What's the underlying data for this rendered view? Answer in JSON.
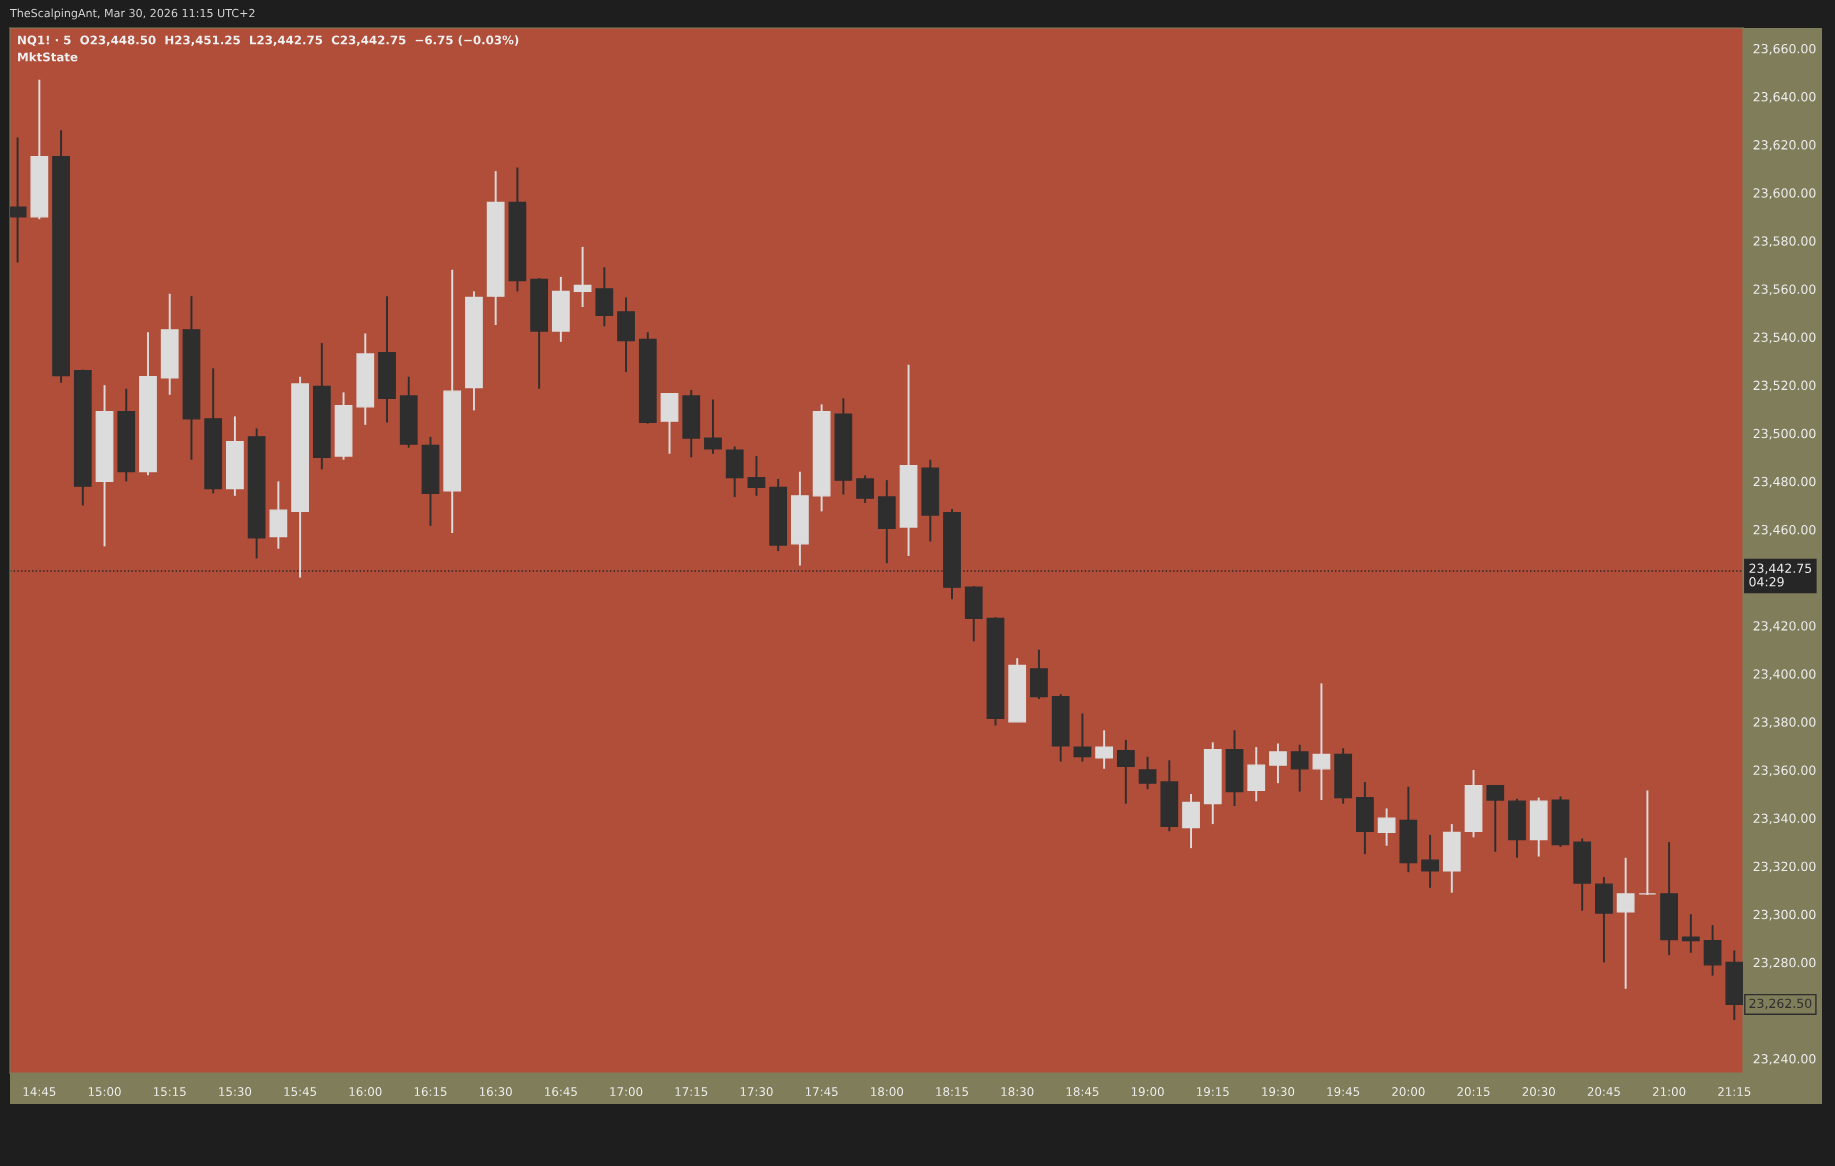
{
  "chart_data": {
    "type": "candlestick",
    "title": "NQ1! · 5  O23,448.50  H23,451.25  L23,442.75  C23,442.75  −6.75 (−0.03%)",
    "subtitle": "MktState",
    "annotations": [
      "TheScalpingAnt, Mar 30, 2026 11:15 UTC+2",
      "23,262.50"
    ],
    "categories": [
      null,
      "14:45",
      null,
      null,
      "15:00",
      null,
      null,
      "15:15",
      null,
      null,
      "15:30",
      null,
      null,
      "15:45",
      null,
      null,
      "16:00",
      null,
      null,
      "16:15",
      null,
      null,
      "16:30",
      null,
      null,
      "16:45",
      null,
      null,
      "17:00",
      null,
      null,
      "17:15",
      null,
      null,
      "17:30",
      null,
      null,
      "17:45",
      null,
      null,
      "18:00",
      null,
      null,
      "18:15",
      null,
      null,
      "18:30",
      null,
      null,
      "18:45",
      null,
      null,
      "19:00",
      null,
      null,
      "19:15",
      null,
      null,
      "19:30",
      null,
      null,
      "19:45",
      null,
      null,
      "20:00",
      null,
      null,
      "20:15",
      null,
      null,
      "20:30",
      null,
      null,
      "20:45",
      null,
      null,
      "21:00",
      null,
      null,
      "21:15"
    ],
    "ohlc": [
      [
        23594,
        23623,
        23571,
        23590
      ],
      [
        23590,
        23647,
        23589,
        23615
      ],
      [
        23615,
        23626,
        23521,
        23524
      ],
      [
        23526,
        23526.5,
        23470,
        23478
      ],
      [
        23480,
        23520,
        23453,
        23509
      ],
      [
        23509,
        23518.5,
        23480,
        23484
      ],
      [
        23484,
        23542,
        23482.5,
        23523.5
      ],
      [
        23523,
        23558,
        23516,
        23543
      ],
      [
        23543,
        23557,
        23489,
        23506
      ],
      [
        23506,
        23527,
        23475,
        23477
      ],
      [
        23477,
        23507,
        23474,
        23496.5
      ],
      [
        23498.5,
        23502,
        23448,
        23456.5
      ],
      [
        23457,
        23480,
        23452,
        23468
      ],
      [
        23467.5,
        23523.5,
        23440,
        23520.5
      ],
      [
        23519.5,
        23537.5,
        23485,
        23490
      ],
      [
        23490.5,
        23517,
        23489,
        23511.5
      ],
      [
        23511,
        23541.5,
        23503.5,
        23533
      ],
      [
        23533.5,
        23557,
        23504.5,
        23514.5
      ],
      [
        23515.5,
        23523.5,
        23494,
        23495.5
      ],
      [
        23495,
        23498.5,
        23461.5,
        23475
      ],
      [
        23476,
        23568,
        23458.5,
        23517.5
      ],
      [
        23519,
        23559,
        23509.5,
        23556.5
      ],
      [
        23557,
        23609,
        23545,
        23596
      ],
      [
        23596,
        23610.5,
        23559,
        23563.5
      ],
      [
        23564,
        23564.5,
        23518.5,
        23542.5
      ],
      [
        23542.5,
        23565,
        23538,
        23559
      ],
      [
        23559,
        23577.5,
        23552.5,
        23561.5
      ],
      [
        23560,
        23569,
        23544.5,
        23549
      ],
      [
        23550.5,
        23556.5,
        23525.5,
        23538.5
      ],
      [
        23539,
        23542,
        23504,
        23504.5
      ],
      [
        23505,
        23516.5,
        23491.5,
        23516.5
      ],
      [
        23515.5,
        23518,
        23490,
        23498
      ],
      [
        23498,
        23514,
        23491.5,
        23493.5
      ],
      [
        23493,
        23494.5,
        23473.5,
        23481.5
      ],
      [
        23481.5,
        23490.5,
        23474,
        23477.5
      ],
      [
        23477.5,
        23481,
        23451,
        23453.5
      ],
      [
        23454,
        23484,
        23445,
        23474
      ],
      [
        23474,
        23512,
        23467.5,
        23509
      ],
      [
        23508,
        23514.5,
        23474.5,
        23480.5
      ],
      [
        23481,
        23482.5,
        23471,
        23473
      ],
      [
        23473.5,
        23480.5,
        23446,
        23460.5
      ],
      [
        23461,
        23528.5,
        23449,
        23486.5
      ],
      [
        23485.5,
        23489,
        23455,
        23466
      ],
      [
        23467,
        23468.5,
        23431,
        23436
      ],
      [
        23436,
        23436.5,
        23413.5,
        23423
      ],
      [
        23423,
        23423.5,
        23378.5,
        23381.5
      ],
      [
        23380,
        23406.5,
        23380,
        23403.5
      ],
      [
        23402,
        23410,
        23389.5,
        23390.5
      ],
      [
        23390.5,
        23391.5,
        23363.5,
        23370
      ],
      [
        23369.5,
        23383.5,
        23363.5,
        23365.5
      ],
      [
        23365,
        23376.5,
        23360.5,
        23369.5
      ],
      [
        23368,
        23372.5,
        23346,
        23361.5
      ],
      [
        23360,
        23365.5,
        23352,
        23354.5
      ],
      [
        23355,
        23364,
        23334.5,
        23336.5
      ],
      [
        23336,
        23350,
        23327.5,
        23346.5
      ],
      [
        23346,
        23371.5,
        23337.5,
        23368.5
      ],
      [
        23368.5,
        23376.5,
        23345,
        23351
      ],
      [
        23351.5,
        23369.5,
        23347,
        23362
      ],
      [
        23362,
        23371,
        23354.5,
        23367.5
      ],
      [
        23367.5,
        23370.5,
        23351,
        23360.5
      ],
      [
        23360.5,
        23396,
        23347.5,
        23366.5
      ],
      [
        23366.5,
        23369,
        23346,
        23348.5
      ],
      [
        23348.5,
        23355,
        23325,
        23334.5
      ],
      [
        23334,
        23344,
        23328.5,
        23340
      ],
      [
        23339,
        23353,
        23317.5,
        23321.5
      ],
      [
        23322.5,
        23333,
        23311,
        23318
      ],
      [
        23318,
        23337.5,
        23309,
        23334
      ],
      [
        23334.5,
        23360,
        23332,
        23353.5
      ],
      [
        23353.5,
        23353.5,
        23326,
        23347.5
      ],
      [
        23347,
        23348,
        23323.5,
        23331
      ],
      [
        23331,
        23348.5,
        23324,
        23347
      ],
      [
        23347.5,
        23349,
        23328,
        23329
      ],
      [
        23330,
        23331.5,
        23301.5,
        23313
      ],
      [
        23312.5,
        23315.5,
        23280,
        23300.5
      ],
      [
        23301,
        23323.5,
        23269,
        23308.5
      ],
      [
        23308.5,
        23351.5,
        23308,
        23308.5
      ],
      [
        23308.5,
        23330,
        23283,
        23289.5
      ],
      [
        23290.5,
        23300,
        23284,
        23289
      ],
      [
        23289,
        23295.5,
        23274.5,
        23279
      ],
      [
        23280,
        23285,
        23256,
        23262.5
      ]
    ],
    "colors": [
      "#2e2e2e",
      "#dcdcdc",
      "#2e2e2e",
      "#2e2e2e",
      "#dcdcdc",
      "#2e2e2e",
      "#dcdcdc",
      "#dcdcdc",
      "#2e2e2e",
      "#2e2e2e",
      "#dcdcdc",
      "#2e2e2e",
      "#dcdcdc",
      "#dcdcdc",
      "#2e2e2e",
      "#dcdcdc",
      "#dcdcdc",
      "#2e2e2e",
      "#2e2e2e",
      "#2e2e2e",
      "#dcdcdc",
      "#dcdcdc",
      "#dcdcdc",
      "#2e2e2e",
      "#2e2e2e",
      "#dcdcdc",
      "#dcdcdc",
      "#2e2e2e",
      "#2e2e2e",
      "#2e2e2e",
      "#dcdcdc",
      "#2e2e2e",
      "#2e2e2e",
      "#2e2e2e",
      "#2e2e2e",
      "#2e2e2e",
      "#dcdcdc",
      "#dcdcdc",
      "#2e2e2e",
      "#2e2e2e",
      "#2e2e2e",
      "#dcdcdc",
      "#2e2e2e",
      "#2e2e2e",
      "#2e2e2e",
      "#2e2e2e",
      "#dcdcdc",
      "#2e2e2e",
      "#2e2e2e",
      "#2e2e2e",
      "#dcdcdc",
      "#2e2e2e",
      "#2e2e2e",
      "#2e2e2e",
      "#dcdcdc",
      "#dcdcdc",
      "#2e2e2e",
      "#dcdcdc",
      "#dcdcdc",
      "#2e2e2e",
      "#dcdcdc",
      "#2e2e2e",
      "#2e2e2e",
      "#dcdcdc",
      "#2e2e2e",
      "#2e2e2e",
      "#dcdcdc",
      "#dcdcdc",
      "#2e2e2e",
      "#2e2e2e",
      "#dcdcdc",
      "#2e2e2e",
      "#2e2e2e",
      "#2e2e2e",
      "#dcdcdc",
      "#dcdcdc",
      "#2e2e2e",
      "#2e2e2e",
      "#2e2e2e",
      "#2e2e2e"
    ],
    "ylim": [
      23234,
      23668.5
    ],
    "yticks": [
      {
        "value": 23240,
        "label": "23,240.00"
      },
      {
        "value": 23280,
        "label": "23,280.00"
      },
      {
        "value": 23300,
        "label": "23,300.00"
      },
      {
        "value": 23320,
        "label": "23,320.00"
      },
      {
        "value": 23340,
        "label": "23,340.00"
      },
      {
        "value": 23360,
        "label": "23,360.00"
      },
      {
        "value": 23380,
        "label": "23,380.00"
      },
      {
        "value": 23400,
        "label": "23,400.00"
      },
      {
        "value": 23420,
        "label": "23,420.00"
      },
      {
        "value": 23460,
        "label": "23,460.00"
      },
      {
        "value": 23480,
        "label": "23,480.00"
      },
      {
        "value": 23500,
        "label": "23,500.00"
      },
      {
        "value": 23520,
        "label": "23,520.00"
      },
      {
        "value": 23540,
        "label": "23,540.00"
      },
      {
        "value": 23560,
        "label": "23,560.00"
      },
      {
        "value": 23580,
        "label": "23,580.00"
      },
      {
        "value": 23600,
        "label": "23,600.00"
      },
      {
        "value": 23620,
        "label": "23,620.00"
      },
      {
        "value": 23640,
        "label": "23,640.00"
      },
      {
        "value": 23660,
        "label": "23,660.00"
      }
    ],
    "ref_lines": [
      {
        "axis": "y",
        "value": 23442.75,
        "label": "23,442.75\n04:29",
        "color": "#262626",
        "line_style": "dotted"
      }
    ],
    "grid": false
  }
}
